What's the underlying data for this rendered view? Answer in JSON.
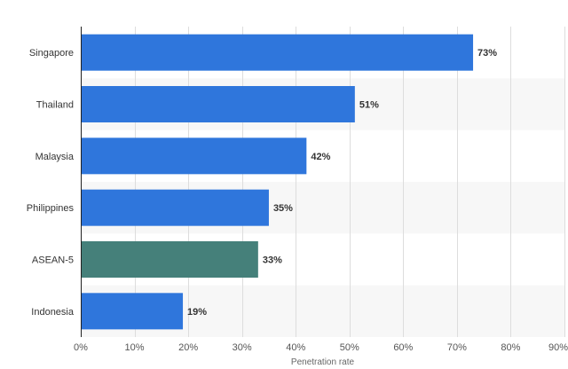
{
  "chart_data": {
    "type": "bar",
    "orientation": "horizontal",
    "categories": [
      "Singapore",
      "Thailand",
      "Malaysia",
      "Philippines",
      "ASEAN-5",
      "Indonesia"
    ],
    "values": [
      73,
      51,
      42,
      35,
      33,
      19
    ],
    "value_labels": [
      "73%",
      "51%",
      "42%",
      "35%",
      "33%",
      "19%"
    ],
    "xlabel": "Penetration rate",
    "ylabel": "",
    "xlim": [
      0,
      90
    ],
    "ticks": [
      0,
      10,
      20,
      30,
      40,
      50,
      60,
      70,
      80,
      90
    ],
    "tick_labels": [
      "0%",
      "10%",
      "20%",
      "30%",
      "40%",
      "50%",
      "60%",
      "70%",
      "80%",
      "90%"
    ],
    "grid": true,
    "alternating_row_shading": true,
    "colors": {
      "bar": "#2f76dc",
      "highlight_bar": "#45807a",
      "highlight_category": "ASEAN-5",
      "grid": "#dddddd",
      "band": "#f7f7f7",
      "axis": "#222222"
    }
  }
}
